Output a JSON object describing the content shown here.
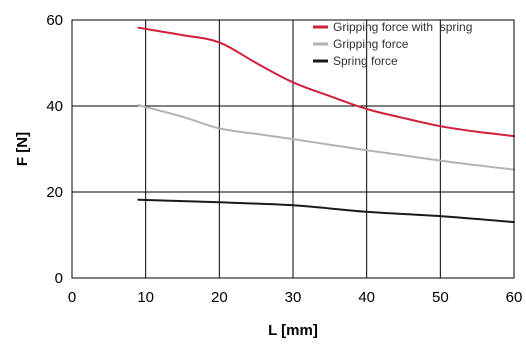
{
  "chart_data": {
    "type": "line",
    "title": "",
    "xlabel": "L [mm]",
    "ylabel": "F [N]",
    "xlim": [
      0,
      60
    ],
    "ylim": [
      0,
      60
    ],
    "xticks": [
      0,
      10,
      20,
      30,
      40,
      50,
      60
    ],
    "yticks": [
      0,
      20,
      40,
      60
    ],
    "grid": true,
    "legend_position": "top-right",
    "series": [
      {
        "name": "Gripping force with  spring",
        "color": "#d0203a",
        "points": [
          [
            9,
            58.2
          ],
          [
            15,
            56.5
          ],
          [
            20,
            54.8
          ],
          [
            25,
            50
          ],
          [
            30,
            45.5
          ],
          [
            35,
            42.3
          ],
          [
            40,
            39.3
          ],
          [
            45,
            37.2
          ],
          [
            50,
            35.3
          ],
          [
            55,
            34
          ],
          [
            60,
            33
          ]
        ]
      },
      {
        "name": "Gripping force",
        "color": "#b3b3b3",
        "points": [
          [
            9,
            40.2
          ],
          [
            15,
            37.5
          ],
          [
            20,
            34.8
          ],
          [
            25,
            33.5
          ],
          [
            30,
            32.3
          ],
          [
            35,
            31
          ],
          [
            40,
            29.7
          ],
          [
            45,
            28.5
          ],
          [
            50,
            27.3
          ],
          [
            55,
            26.2
          ],
          [
            60,
            25.2
          ]
        ]
      },
      {
        "name": "Spring force",
        "color": "#1a1a1a",
        "points": [
          [
            9,
            18.2
          ],
          [
            20,
            17.6
          ],
          [
            30,
            16.9
          ],
          [
            40,
            15.4
          ],
          [
            50,
            14.4
          ],
          [
            60,
            13
          ]
        ]
      }
    ]
  }
}
